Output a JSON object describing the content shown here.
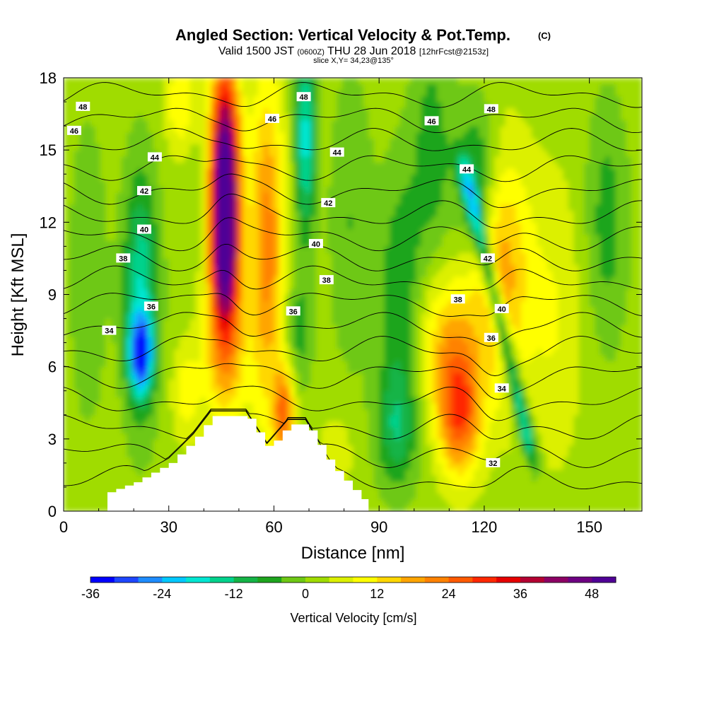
{
  "title": {
    "main": "Angled Section: Vertical Velocity & Pot.Temp.",
    "main_suffix": "(C)",
    "valid_prefix": "Valid 1500 JST",
    "valid_utc": "(0600Z)",
    "valid_date": "THU 28 Jun 2018",
    "valid_fcst": "[12hrFcst@2153z]",
    "slice": "slice X,Y= 34,23@135°"
  },
  "chart_data": {
    "type": "heatmap",
    "xlabel": "Distance [nm]",
    "ylabel": "Height [Kft MSL]",
    "xlim": [
      0,
      165
    ],
    "ylim": [
      0,
      18
    ],
    "x_ticks": [
      0,
      30,
      60,
      90,
      120,
      150
    ],
    "y_ticks": [
      0,
      3,
      6,
      9,
      12,
      15,
      18
    ],
    "colorbar": {
      "label": "Vertical Velocity [cm/s]",
      "min": -36,
      "max": 52,
      "step": 4,
      "tick_values": [
        -36,
        -24,
        -12,
        0,
        12,
        24,
        36,
        48
      ],
      "colors": [
        "#0000ff",
        "#1e46ff",
        "#1e8cff",
        "#00c8ff",
        "#00e6d2",
        "#00d28c",
        "#14b446",
        "#1ea51e",
        "#6ec814",
        "#a0dc00",
        "#dcf000",
        "#ffff00",
        "#ffd700",
        "#ffa500",
        "#ff8200",
        "#ff5a00",
        "#ff2800",
        "#e60000",
        "#b40032",
        "#8c0064",
        "#6e0082",
        "#500096"
      ]
    },
    "velocity_features": [
      {
        "x": 46,
        "z": 14.5,
        "w": 4,
        "h": 4,
        "value": 50
      },
      {
        "x": 46,
        "z": 10.5,
        "w": 4,
        "h": 3,
        "value": 38
      },
      {
        "x": 46,
        "z": 6.5,
        "w": 6,
        "h": 3,
        "value": 16
      },
      {
        "x": 58,
        "z": 11,
        "w": 5,
        "h": 7,
        "value": 20
      },
      {
        "x": 22,
        "z": 9,
        "w": 5,
        "h": 5,
        "value": -18
      },
      {
        "x": 22,
        "z": 6.5,
        "w": 3,
        "h": 1.5,
        "value": -30
      },
      {
        "x": 69,
        "z": 15.5,
        "w": 3,
        "h": 4,
        "value": -20
      },
      {
        "x": 67,
        "z": 7.5,
        "w": 4,
        "h": 2.5,
        "value": -8
      },
      {
        "x": 63,
        "z": 4,
        "w": 3,
        "h": 2,
        "value": 22
      },
      {
        "x": 113,
        "z": 4,
        "w": 6,
        "h": 2.5,
        "value": 24
      },
      {
        "x": 110,
        "z": 7,
        "w": 9,
        "h": 3,
        "value": 14
      },
      {
        "x": 125,
        "z": 10,
        "w": 8,
        "h": 5,
        "value": 16
      },
      {
        "x": 96,
        "z": 9,
        "w": 6,
        "h": 5,
        "value": -10
      },
      {
        "x": 95,
        "z": 3.5,
        "w": 6,
        "h": 2.5,
        "value": -12
      },
      {
        "x": 105,
        "z": 15,
        "w": 6,
        "h": 5,
        "value": -8
      },
      {
        "x": 118,
        "z": 14,
        "w": 6,
        "h": 3,
        "value": -12
      },
      {
        "x": 155,
        "z": 12,
        "w": 6,
        "h": 5,
        "value": -8
      },
      {
        "x": 7,
        "z": 10,
        "w": 5,
        "h": 6,
        "value": -6
      },
      {
        "x": 33,
        "z": 17,
        "w": 4,
        "h": 2,
        "value": 10
      },
      {
        "x": 82,
        "z": 12,
        "w": 6,
        "h": 6,
        "value": -6
      },
      {
        "x": 140,
        "z": 8,
        "w": 8,
        "h": 6,
        "value": 6
      },
      {
        "x": 78,
        "z": 2.5,
        "w": 6,
        "h": 2,
        "value": 4
      },
      {
        "x": 35,
        "z": 5,
        "w": 4,
        "h": 2,
        "value": 8
      }
    ],
    "shear_band": {
      "x_top": 114,
      "z_top": 14.5,
      "x_bottom": 134,
      "z_bottom": 2,
      "width": 2.2,
      "value": -20
    },
    "terrain": [
      [
        10,
        0.65
      ],
      [
        20,
        1.2
      ],
      [
        30,
        2.0
      ],
      [
        37,
        3.0
      ],
      [
        42,
        3.95
      ],
      [
        52,
        3.95
      ],
      [
        58,
        2.6
      ],
      [
        64,
        3.6
      ],
      [
        69,
        3.6
      ],
      [
        76,
        1.9
      ],
      [
        83,
        0.8
      ],
      [
        87,
        0.2
      ]
    ],
    "isentropes": [
      {
        "value": 32,
        "base": 1.3
      },
      {
        "value": 33,
        "base": 2.4
      },
      {
        "value": 34,
        "base": 3.5
      },
      {
        "value": 35,
        "base": 4.6
      },
      {
        "value": 36,
        "base": 5.7
      },
      {
        "value": 37,
        "base": 6.7
      },
      {
        "value": 38,
        "base": 7.7
      },
      {
        "value": 39,
        "base": 8.7
      },
      {
        "value": 40,
        "base": 9.6
      },
      {
        "value": 41,
        "base": 10.5
      },
      {
        "value": 42,
        "base": 11.4
      },
      {
        "value": 43,
        "base": 12.3
      },
      {
        "value": 44,
        "base": 13.3
      },
      {
        "value": 45,
        "base": 14.3
      },
      {
        "value": 46,
        "base": 15.3
      },
      {
        "value": 47,
        "base": 16.3
      },
      {
        "value": 48,
        "base": 17.3
      }
    ],
    "contour_labels": [
      {
        "text": "48",
        "x": 5.5,
        "z": 16.8
      },
      {
        "text": "46",
        "x": 3,
        "z": 15.8
      },
      {
        "text": "44",
        "x": 26,
        "z": 14.7
      },
      {
        "text": "42",
        "x": 23,
        "z": 13.3
      },
      {
        "text": "40",
        "x": 23,
        "z": 11.7
      },
      {
        "text": "38",
        "x": 17,
        "z": 10.5
      },
      {
        "text": "36",
        "x": 25,
        "z": 8.5
      },
      {
        "text": "34",
        "x": 13,
        "z": 7.5
      },
      {
        "text": "48",
        "x": 68.5,
        "z": 17.2
      },
      {
        "text": "46",
        "x": 59.5,
        "z": 16.3
      },
      {
        "text": "44",
        "x": 78,
        "z": 14.9
      },
      {
        "text": "42",
        "x": 75.5,
        "z": 12.8
      },
      {
        "text": "40",
        "x": 72,
        "z": 11.1
      },
      {
        "text": "38",
        "x": 75,
        "z": 9.6
      },
      {
        "text": "36",
        "x": 65.5,
        "z": 8.3
      },
      {
        "text": "46",
        "x": 105,
        "z": 16.2
      },
      {
        "text": "48",
        "x": 122,
        "z": 16.7
      },
      {
        "text": "44",
        "x": 115,
        "z": 14.2
      },
      {
        "text": "42",
        "x": 121,
        "z": 10.5
      },
      {
        "text": "40",
        "x": 125,
        "z": 8.4
      },
      {
        "text": "38",
        "x": 112.5,
        "z": 8.8
      },
      {
        "text": "36",
        "x": 122,
        "z": 7.2
      },
      {
        "text": "34",
        "x": 125,
        "z": 5.1
      },
      {
        "text": "32",
        "x": 122.5,
        "z": 2.0
      }
    ],
    "grid": false
  }
}
